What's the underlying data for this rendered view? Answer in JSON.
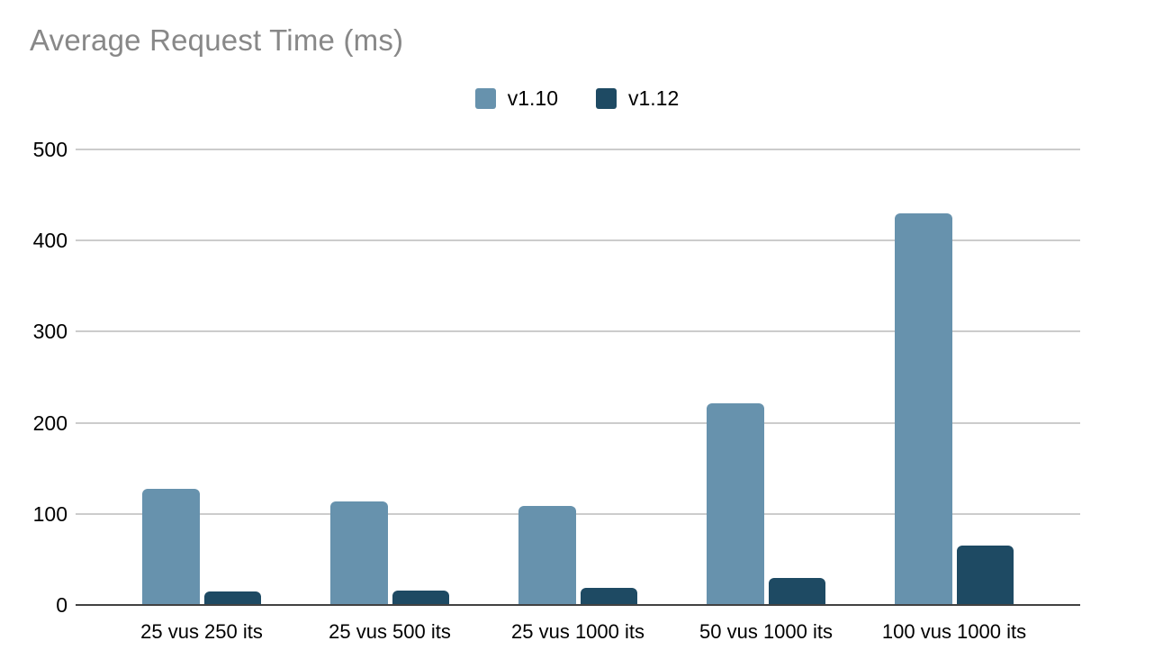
{
  "page": {
    "background": "#ffffff"
  },
  "chart_data": {
    "type": "bar",
    "title": "Average Request Time (ms)",
    "title_color": "#888888",
    "xlabel": "",
    "ylabel": "",
    "categories": [
      "25 vus 250 its",
      "25 vus 500 its",
      "25 vus 1000 its",
      "50 vus 1000 its",
      "100 vus 1000 its"
    ],
    "series": [
      {
        "name": "v1.10",
        "color": "#6792ad",
        "values": [
          127,
          114,
          109,
          221,
          430
        ]
      },
      {
        "name": "v1.12",
        "color": "#1e4a63",
        "values": [
          15,
          16,
          19,
          30,
          65
        ]
      }
    ],
    "ylim": [
      0,
      500
    ],
    "yticks": [
      0,
      100,
      200,
      300,
      400,
      500
    ],
    "grid": true,
    "gridline_color": "#cccccc",
    "axis_line_color": "#424242",
    "label_color": "#000000",
    "legend_position": "top-center"
  }
}
